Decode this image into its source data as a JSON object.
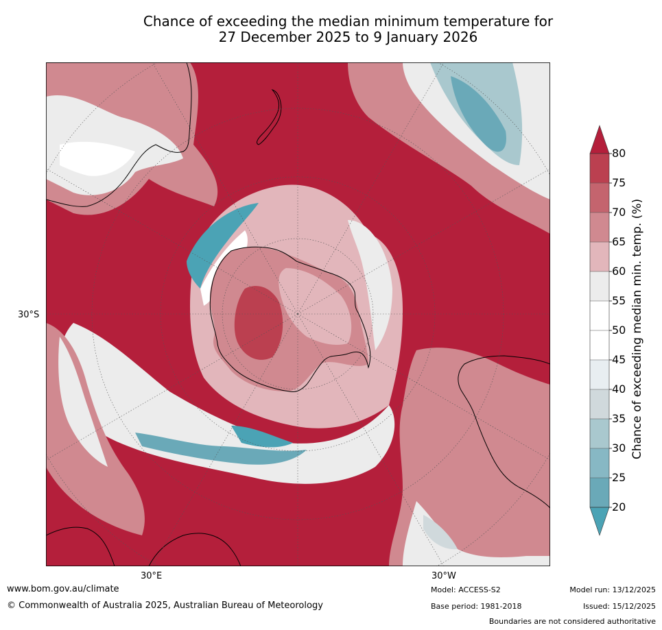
{
  "title": {
    "line1": "Chance of exceeding the median minimum temperature for",
    "line2": "27 December 2025 to 9 January 2026"
  },
  "map": {
    "projection": "south-polar-stereographic",
    "labels": {
      "lat": "30°S",
      "lon_east": "30°E",
      "lon_west": "30°W"
    }
  },
  "colorbar": {
    "title": "Chance of exceeding median min. temp. (%)",
    "ticks": [
      "20",
      "25",
      "30",
      "35",
      "40",
      "45",
      "50",
      "55",
      "60",
      "65",
      "70",
      "75",
      "80"
    ],
    "colors": {
      "c20_25": "#6aa9b8",
      "c25_30": "#87b8c4",
      "c30_35": "#a9c8ce",
      "c35_40": "#d0d9dc",
      "c40_45": "#e8eef1",
      "c45_50": "#ffffff",
      "c50_55": "#ffffff",
      "c55_60": "#ececec",
      "c60_65": "#e2b6bb",
      "c65_70": "#d08990",
      "c70_75": "#c4646e",
      "c75_80": "#bb4050",
      "over": "#b41f3b",
      "under": "#4ba3b5"
    }
  },
  "footer": {
    "website": "www.bom.gov.au/climate",
    "copyright": "© Commonwealth of Australia 2025, Australian Bureau of Meteorology",
    "model": "Model: ACCESS-S2",
    "base_period": "Base period: 1981-2018",
    "model_run": "Model run: 13/12/2025",
    "issued": "Issued: 15/12/2025",
    "disclaimer": "Boundaries are not considered authoritative"
  }
}
